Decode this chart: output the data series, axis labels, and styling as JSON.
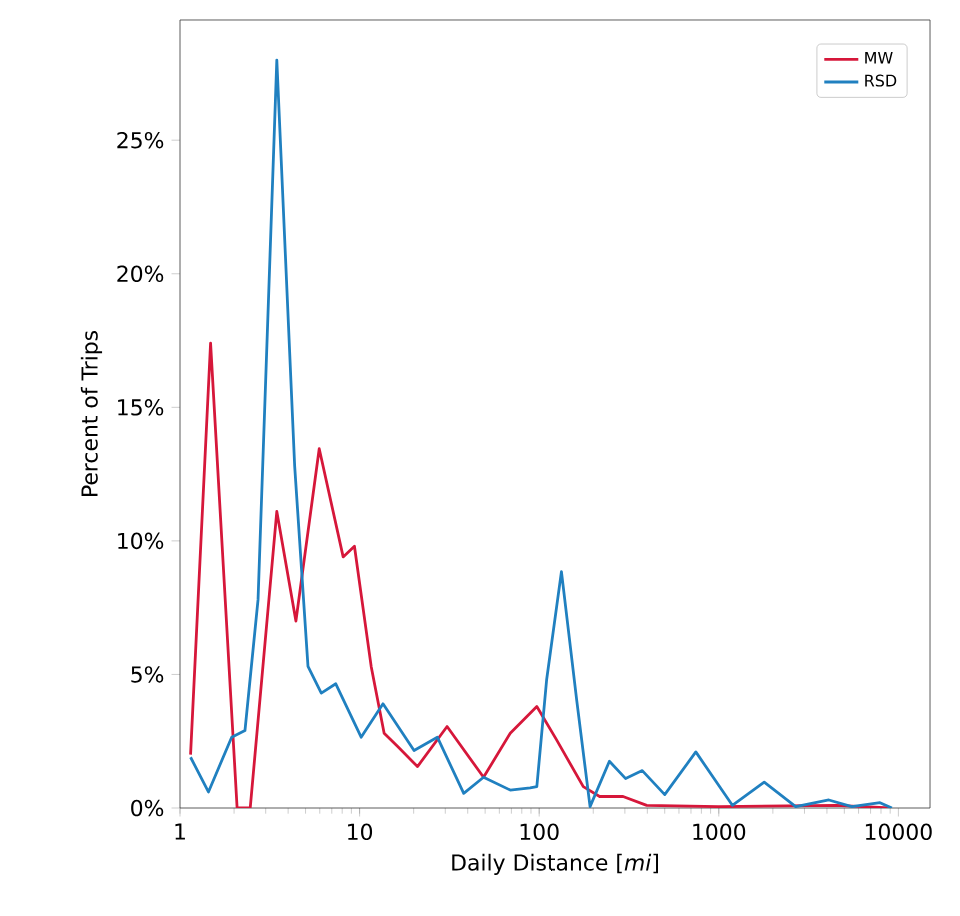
{
  "chart_data": {
    "type": "line",
    "xlabel": "Daily Distance [*mi*]",
    "ylabel": "Percent of Trips",
    "log": "x",
    "xlim": [
      1,
      15000
    ],
    "ylim": [
      0,
      29.5
    ],
    "xticks": [
      1,
      10,
      100,
      1000,
      10000
    ],
    "yticks": [
      {
        "value": 0,
        "label": "0%"
      },
      {
        "value": 5,
        "label": "5%"
      },
      {
        "value": 10,
        "label": "10%"
      },
      {
        "value": 15,
        "label": "15%"
      },
      {
        "value": 20,
        "label": "20%"
      },
      {
        "value": 25,
        "label": "25%"
      }
    ],
    "legend": "top right",
    "grid": false,
    "marker": "none",
    "line_style": "solid",
    "series": [
      {
        "name": "MW",
        "color": "#d6173a",
        "x": [
          1.145,
          1.48,
          2.08,
          2.46,
          3.46,
          4.42,
          5.96,
          8.1,
          9.36,
          11.6,
          13.7,
          16.3,
          21.0,
          30.7,
          49,
          69,
          97,
          125,
          176,
          217,
          293,
          397,
          1000,
          4500,
          9000
        ],
        "values": [
          2.0,
          17.4,
          0,
          0,
          11.1,
          7.0,
          13.45,
          9.4,
          9.8,
          5.3,
          2.8,
          2.3,
          1.55,
          3.05,
          1.15,
          2.8,
          3.8,
          2.55,
          0.8,
          0.43,
          0.43,
          0.1,
          0.05,
          0.1,
          0
        ]
      },
      {
        "name": "RSD",
        "color": "#2080c0",
        "x": [
          1.145,
          1.44,
          1.94,
          2.3,
          2.72,
          3.46,
          4.35,
          5.16,
          6.12,
          7.37,
          10.2,
          13.5,
          20.1,
          27.1,
          38.0,
          49,
          69,
          89,
          97,
          110,
          133,
          162,
          192,
          246,
          303,
          375,
          500,
          745,
          1190,
          1790,
          2680,
          4100,
          5500,
          7900,
          9200
        ],
        "values": [
          1.9,
          0.6,
          2.65,
          2.9,
          7.8,
          28.0,
          12.8,
          5.3,
          4.3,
          4.65,
          2.65,
          3.9,
          2.15,
          2.65,
          0.55,
          1.15,
          0.67,
          0.75,
          0.8,
          4.8,
          8.85,
          4.0,
          0.05,
          1.75,
          1.1,
          1.4,
          0.5,
          2.1,
          0.1,
          0.97,
          0.05,
          0.3,
          0.05,
          0.2,
          0
        ]
      }
    ]
  }
}
